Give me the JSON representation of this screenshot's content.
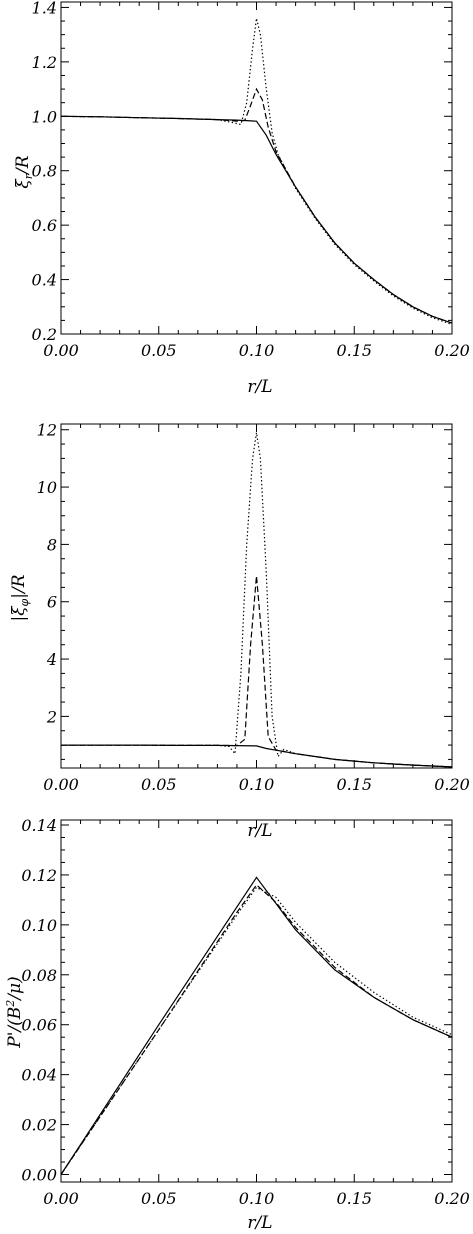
{
  "chart_data": [
    {
      "type": "line",
      "id": "panel-xi-r",
      "xlabel": "r/L",
      "ylabel": "ξr/R",
      "ylabel_main": "ξ",
      "ylabel_sub": "r",
      "ylabel_rest": "/R",
      "xlim": [
        0.0,
        0.2
      ],
      "ylim": [
        0.2,
        1.42
      ],
      "xticks": [
        "0.00",
        "0.05",
        "0.10",
        "0.15",
        "0.20"
      ],
      "xtick_values": [
        0.0,
        0.05,
        0.1,
        0.15,
        0.2
      ],
      "yticks": [
        "0.2",
        "0.4",
        "0.6",
        "0.8",
        "1.0",
        "1.2",
        "1.4"
      ],
      "ytick_values": [
        0.2,
        0.4,
        0.6,
        0.8,
        1.0,
        1.2,
        1.4
      ],
      "series": [
        {
          "style": "solid",
          "x": [
            0.0,
            0.02,
            0.04,
            0.06,
            0.08,
            0.09,
            0.095,
            0.1,
            0.105,
            0.11,
            0.12,
            0.13,
            0.14,
            0.15,
            0.16,
            0.17,
            0.18,
            0.19,
            0.2
          ],
          "y": [
            1.0,
            0.998,
            0.995,
            0.992,
            0.988,
            0.986,
            0.984,
            0.982,
            0.93,
            0.86,
            0.74,
            0.63,
            0.535,
            0.46,
            0.4,
            0.345,
            0.3,
            0.265,
            0.24
          ]
        },
        {
          "style": "dashed",
          "x": [
            0.0,
            0.02,
            0.04,
            0.06,
            0.08,
            0.09,
            0.094,
            0.097,
            0.1,
            0.103,
            0.106,
            0.11,
            0.12,
            0.13,
            0.14,
            0.15,
            0.16,
            0.17,
            0.18,
            0.19,
            0.2
          ],
          "y": [
            1.0,
            0.998,
            0.995,
            0.992,
            0.988,
            0.982,
            0.985,
            1.04,
            1.1,
            1.06,
            0.96,
            0.87,
            0.74,
            0.63,
            0.535,
            0.46,
            0.4,
            0.345,
            0.3,
            0.265,
            0.24
          ]
        },
        {
          "style": "dotted",
          "x": [
            0.0,
            0.02,
            0.04,
            0.06,
            0.08,
            0.089,
            0.092,
            0.095,
            0.098,
            0.1,
            0.102,
            0.105,
            0.108,
            0.111,
            0.12,
            0.13,
            0.14,
            0.15,
            0.16,
            0.17,
            0.18,
            0.19,
            0.2
          ],
          "y": [
            1.0,
            0.998,
            0.995,
            0.992,
            0.988,
            0.975,
            0.97,
            1.05,
            1.25,
            1.36,
            1.3,
            1.1,
            0.94,
            0.86,
            0.735,
            0.625,
            0.53,
            0.455,
            0.395,
            0.34,
            0.295,
            0.26,
            0.235
          ]
        }
      ]
    },
    {
      "type": "line",
      "id": "panel-xi-phi",
      "xlabel": "r/L",
      "ylabel": "|ξφ|/R",
      "ylabel_main": "|ξ",
      "ylabel_sub": "φ",
      "ylabel_rest": "|/R",
      "xlim": [
        0.0,
        0.2
      ],
      "ylim": [
        0.2,
        12.2
      ],
      "xticks": [
        "0.00",
        "0.05",
        "0.10",
        "0.15",
        "0.20"
      ],
      "xtick_values": [
        0.0,
        0.05,
        0.1,
        0.15,
        0.2
      ],
      "yticks": [
        "2",
        "4",
        "6",
        "8",
        "10",
        "12"
      ],
      "ytick_values": [
        2,
        4,
        6,
        8,
        10,
        12
      ],
      "series": [
        {
          "style": "solid",
          "x": [
            0.0,
            0.02,
            0.04,
            0.06,
            0.08,
            0.09,
            0.1,
            0.105,
            0.11,
            0.12,
            0.13,
            0.14,
            0.15,
            0.16,
            0.17,
            0.18,
            0.19,
            0.2
          ],
          "y": [
            1.0,
            1.0,
            1.0,
            0.99,
            0.99,
            0.98,
            0.97,
            0.88,
            0.82,
            0.7,
            0.6,
            0.5,
            0.44,
            0.38,
            0.34,
            0.3,
            0.27,
            0.24
          ]
        },
        {
          "style": "dashed",
          "x": [
            0.0,
            0.02,
            0.04,
            0.06,
            0.08,
            0.09,
            0.094,
            0.097,
            0.1,
            0.103,
            0.106,
            0.11,
            0.12,
            0.13,
            0.14,
            0.15,
            0.16,
            0.17,
            0.18,
            0.19,
            0.2
          ],
          "y": [
            1.0,
            1.0,
            1.0,
            0.99,
            0.99,
            0.98,
            1.2,
            4.5,
            6.9,
            4.5,
            1.3,
            0.82,
            0.7,
            0.6,
            0.5,
            0.44,
            0.38,
            0.34,
            0.3,
            0.27,
            0.24
          ]
        },
        {
          "style": "dotted",
          "x": [
            0.0,
            0.02,
            0.04,
            0.06,
            0.08,
            0.086,
            0.089,
            0.092,
            0.095,
            0.098,
            0.1,
            0.102,
            0.105,
            0.108,
            0.111,
            0.114,
            0.12,
            0.13,
            0.14,
            0.15,
            0.16,
            0.17,
            0.18,
            0.19,
            0.2
          ],
          "y": [
            1.0,
            1.0,
            1.0,
            0.99,
            0.99,
            0.95,
            0.7,
            3.5,
            8.0,
            11.0,
            11.9,
            11.0,
            7.0,
            2.0,
            0.6,
            0.85,
            0.7,
            0.6,
            0.5,
            0.44,
            0.38,
            0.34,
            0.3,
            0.27,
            0.24
          ]
        }
      ]
    },
    {
      "type": "line",
      "id": "panel-pressure",
      "xlabel": "r/L",
      "ylabel": "P'/(B²/μ)",
      "ylabel_main": "P'/(B",
      "ylabel_sup": "2",
      "ylabel_rest": "/μ)",
      "xlim": [
        0.0,
        0.2
      ],
      "ylim": [
        -0.003,
        0.142
      ],
      "xticks": [
        "0.00",
        "0.05",
        "0.10",
        "0.15",
        "0.20"
      ],
      "xtick_values": [
        0.0,
        0.05,
        0.1,
        0.15,
        0.2
      ],
      "yticks": [
        "0.00",
        "0.02",
        "0.04",
        "0.06",
        "0.08",
        "0.10",
        "0.12",
        "0.14"
      ],
      "ytick_values": [
        0.0,
        0.02,
        0.04,
        0.06,
        0.08,
        0.1,
        0.12,
        0.14
      ],
      "series": [
        {
          "style": "solid",
          "x": [
            0.0,
            0.05,
            0.1,
            0.12,
            0.14,
            0.16,
            0.18,
            0.2
          ],
          "y": [
            0.0,
            0.06,
            0.119,
            0.098,
            0.082,
            0.071,
            0.062,
            0.055
          ]
        },
        {
          "style": "dashed",
          "x": [
            0.0,
            0.05,
            0.09,
            0.1,
            0.11,
            0.12,
            0.14,
            0.16,
            0.18,
            0.2
          ],
          "y": [
            0.0,
            0.058,
            0.105,
            0.116,
            0.109,
            0.099,
            0.083,
            0.071,
            0.062,
            0.055
          ]
        },
        {
          "style": "dotted",
          "x": [
            0.0,
            0.05,
            0.09,
            0.1,
            0.11,
            0.12,
            0.14,
            0.16,
            0.18,
            0.2
          ],
          "y": [
            0.0,
            0.058,
            0.104,
            0.115,
            0.111,
            0.101,
            0.085,
            0.073,
            0.063,
            0.056
          ]
        }
      ]
    }
  ]
}
